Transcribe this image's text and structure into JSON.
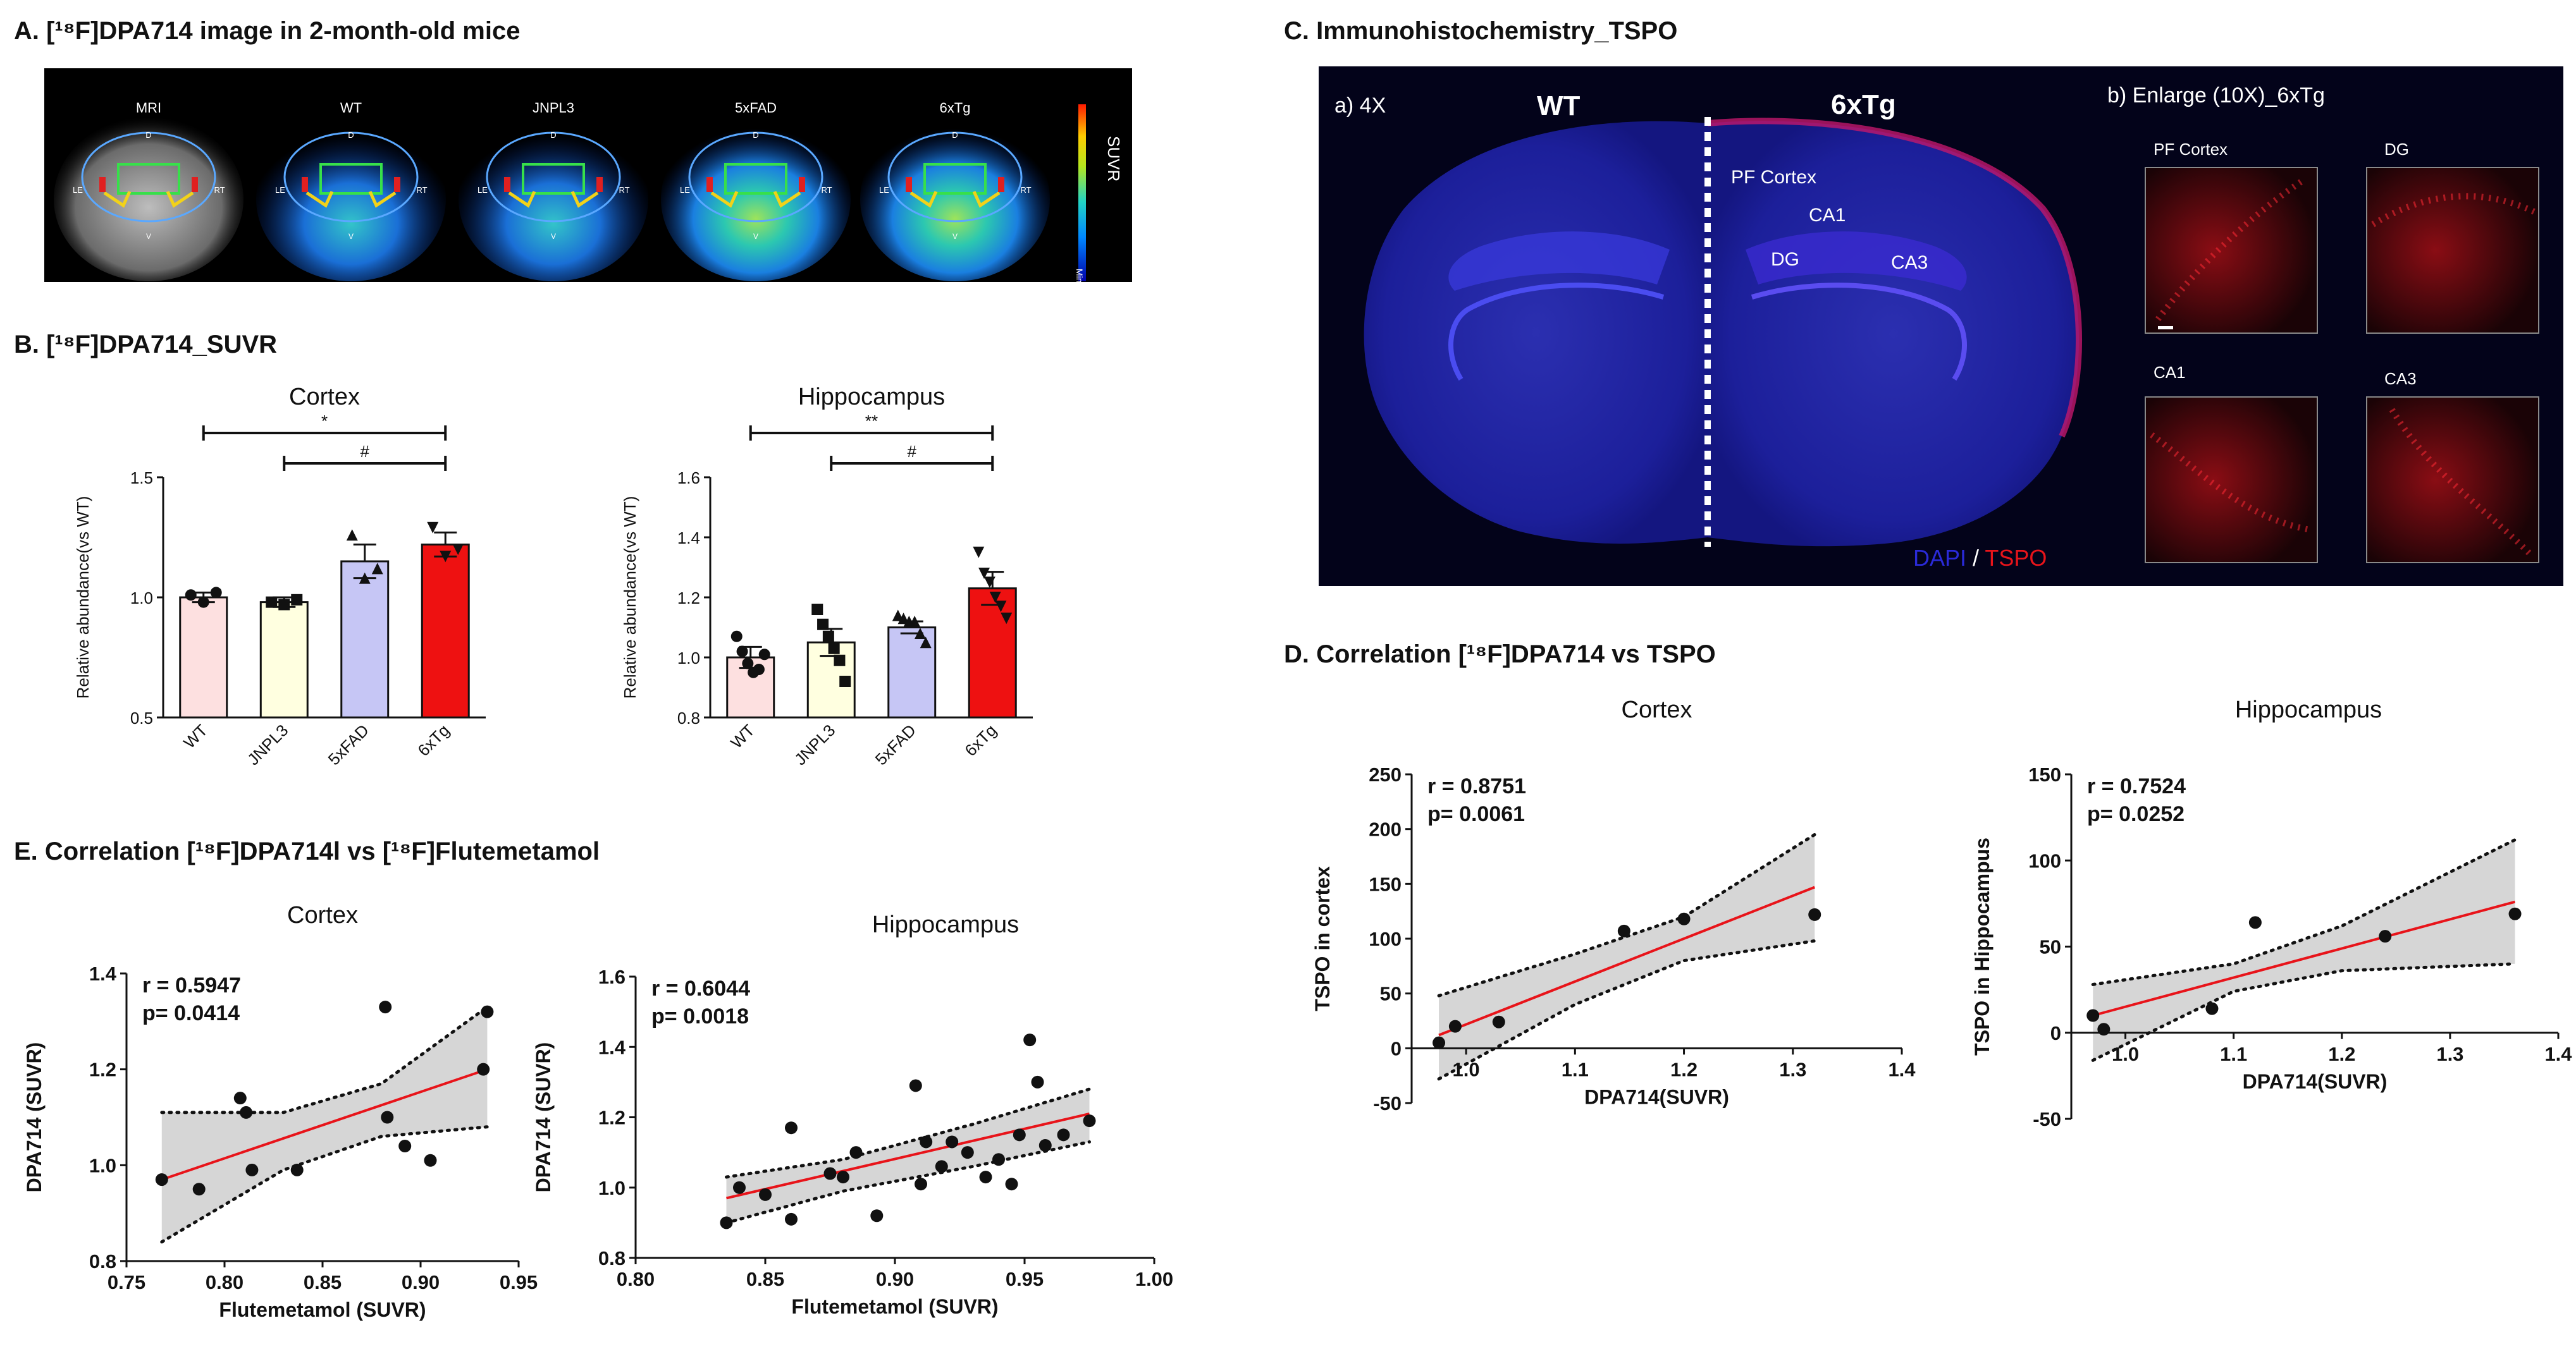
{
  "panelA": {
    "title": "A. [¹⁸F]DPA714 image in 2-month-old mice",
    "labels": [
      "MRI",
      "WT",
      "JNPL3",
      "5xFAD",
      "6xTg"
    ],
    "colorbar_label": "SUVR",
    "colorbar_min": "Min",
    "hemi_left": "LE",
    "hemi_right": "RT",
    "mark_top": "D",
    "mark_bottom": "V"
  },
  "panelB": {
    "title": "B. [¹⁸F]DPA714_SUVR"
  },
  "panelC": {
    "title": "C. Immunohistochemistry_TSPO",
    "sub_a": "a) 4X",
    "wt": "WT",
    "tg": "6xTg",
    "regions": [
      "PF Cortex",
      "CA1",
      "DG",
      "CA3"
    ],
    "stain_dapi": "DAPI",
    "stain_sep": " / ",
    "stain_tspo": "TSPO",
    "sub_b": "b) Enlarge (10X)_6xTg",
    "tiles": [
      "PF Cortex",
      "DG",
      "CA1",
      "CA3"
    ]
  },
  "panelD": {
    "title": "D. Correlation [¹⁸F]DPA714 vs TSPO"
  },
  "panelE": {
    "title": "E. Correlation [¹⁸F]DPA714l vs [¹⁸F]Flutemetamol"
  },
  "colors": {
    "wt": "#fde0e0",
    "jnpl3": "#ffffe0",
    "fxad": "#c6c6f5",
    "tg": "#ee1111",
    "fit": "#e8141a",
    "band": "#d6d6d6",
    "ihc_bg": "#03031a"
  },
  "chart_data": [
    {
      "id": "B-cortex",
      "type": "bar",
      "title": "Cortex",
      "ylabel": "Relative abundance(vs WT)",
      "ylim": [
        0.5,
        1.5
      ],
      "yticks": [
        "0.5",
        "1.0",
        "1.5"
      ],
      "categories": [
        "WT",
        "JNPL3",
        "5xFAD",
        "6xTg"
      ],
      "values": [
        1.0,
        0.98,
        1.15,
        1.22
      ],
      "errors": [
        0.02,
        0.02,
        0.07,
        0.05
      ],
      "points": [
        [
          1.01,
          0.98,
          1.02
        ],
        [
          0.98,
          0.97,
          0.99
        ],
        [
          1.26,
          1.08,
          1.12
        ],
        [
          1.29,
          1.17,
          1.2
        ]
      ],
      "markers": [
        "circle",
        "square",
        "triangle",
        "triangle-down"
      ],
      "significance": [
        {
          "from": 0,
          "to": 3,
          "label": "*"
        },
        {
          "from": 1,
          "to": 3,
          "label": "#"
        }
      ]
    },
    {
      "id": "B-hippocampus",
      "type": "bar",
      "title": "Hippocampus",
      "ylabel": "Relative abundance(vs WT)",
      "ylim": [
        0.8,
        1.6
      ],
      "yticks": [
        "0.8",
        "1.0",
        "1.2",
        "1.4",
        "1.6"
      ],
      "categories": [
        "WT",
        "JNPL3",
        "5xFAD",
        "6xTg"
      ],
      "values": [
        1.0,
        1.05,
        1.1,
        1.23
      ],
      "errors": [
        0.035,
        0.045,
        0.02,
        0.055
      ],
      "points": [
        [
          1.07,
          1.02,
          0.98,
          0.95,
          0.96,
          1.01
        ],
        [
          1.16,
          1.11,
          1.07,
          1.03,
          0.99,
          0.92
        ],
        [
          1.14,
          1.13,
          1.12,
          1.12,
          1.08,
          1.05
        ],
        [
          1.35,
          1.28,
          1.25,
          1.2,
          1.17,
          1.13
        ]
      ],
      "markers": [
        "circle",
        "square",
        "triangle",
        "triangle-down"
      ],
      "significance": [
        {
          "from": 0,
          "to": 3,
          "label": "**"
        },
        {
          "from": 1,
          "to": 3,
          "label": "#"
        }
      ]
    },
    {
      "id": "D-cortex",
      "type": "scatter",
      "title": "Cortex",
      "xlabel": "DPA714(SUVR)",
      "ylabel": "TSPO in cortex",
      "xlim": [
        0.95,
        1.4
      ],
      "ylim": [
        -50,
        250
      ],
      "xticks": [
        "1.0",
        "1.1",
        "1.2",
        "1.3",
        "1.4"
      ],
      "yticks": [
        "-50",
        "0",
        "50",
        "100",
        "150",
        "200",
        "250"
      ],
      "r": "r = 0.8751",
      "p": "p= 0.0061",
      "x": [
        0.975,
        0.99,
        1.03,
        1.145,
        1.2,
        1.32
      ],
      "y": [
        5,
        20,
        24,
        107,
        118,
        122
      ],
      "fit": [
        [
          0.975,
          12
        ],
        [
          1.32,
          147
        ]
      ],
      "band_upper": [
        [
          0.975,
          48
        ],
        [
          1.1,
          86
        ],
        [
          1.2,
          120
        ],
        [
          1.32,
          195
        ]
      ],
      "band_lower": [
        [
          0.975,
          -28
        ],
        [
          1.1,
          40
        ],
        [
          1.2,
          80
        ],
        [
          1.32,
          98
        ]
      ]
    },
    {
      "id": "D-hippocampus",
      "type": "scatter",
      "title": "Hippocampus",
      "xlabel": "DPA714(SUVR)",
      "ylabel": "TSPO in Hippocampus",
      "xlim": [
        0.95,
        1.4
      ],
      "ylim": [
        -50,
        150
      ],
      "xticks": [
        "1.0",
        "1.1",
        "1.2",
        "1.3",
        "1.4"
      ],
      "yticks": [
        "-50",
        "0",
        "50",
        "100",
        "150"
      ],
      "r": "r = 0.7524",
      "p": "p= 0.0252",
      "x": [
        0.97,
        0.98,
        1.08,
        1.12,
        1.24,
        1.36
      ],
      "y": [
        10,
        2,
        14,
        64,
        56,
        69
      ],
      "fit": [
        [
          0.97,
          10
        ],
        [
          1.36,
          76
        ]
      ],
      "band_upper": [
        [
          0.97,
          28
        ],
        [
          1.1,
          40
        ],
        [
          1.2,
          62
        ],
        [
          1.36,
          112
        ]
      ],
      "band_lower": [
        [
          0.97,
          -16
        ],
        [
          1.1,
          24
        ],
        [
          1.2,
          36
        ],
        [
          1.36,
          40
        ]
      ]
    },
    {
      "id": "E-cortex",
      "type": "scatter",
      "title": "Cortex",
      "xlabel": "Flutemetamol (SUVR)",
      "ylabel": "DPA714 (SUVR)",
      "xlim": [
        0.75,
        0.95
      ],
      "ylim": [
        0.8,
        1.4
      ],
      "xticks": [
        "0.75",
        "0.80",
        "0.85",
        "0.90",
        "0.95"
      ],
      "yticks": [
        "0.8",
        "1.0",
        "1.2",
        "1.4"
      ],
      "r": "r = 0.5947",
      "p": "p= 0.0414",
      "x": [
        0.768,
        0.787,
        0.808,
        0.811,
        0.814,
        0.837,
        0.882,
        0.883,
        0.892,
        0.905,
        0.932,
        0.934
      ],
      "y": [
        0.97,
        0.95,
        1.14,
        1.11,
        0.99,
        0.99,
        1.33,
        1.1,
        1.04,
        1.01,
        1.2,
        1.32
      ],
      "fit": [
        [
          0.768,
          0.97
        ],
        [
          0.934,
          1.2
        ]
      ],
      "band_upper": [
        [
          0.768,
          1.11
        ],
        [
          0.83,
          1.11
        ],
        [
          0.88,
          1.17
        ],
        [
          0.934,
          1.33
        ]
      ],
      "band_lower": [
        [
          0.768,
          0.84
        ],
        [
          0.83,
          0.99
        ],
        [
          0.88,
          1.06
        ],
        [
          0.934,
          1.08
        ]
      ]
    },
    {
      "id": "E-hippocampus",
      "type": "scatter",
      "title": "Hippocampus",
      "xlabel": "Flutemetamol (SUVR)",
      "ylabel": "DPA714 (SUVR)",
      "xlim": [
        0.8,
        1.0
      ],
      "ylim": [
        0.8,
        1.6
      ],
      "xticks": [
        "0.80",
        "0.85",
        "0.90",
        "0.95",
        "1.00"
      ],
      "yticks": [
        "0.8",
        "1.0",
        "1.2",
        "1.4",
        "1.6"
      ],
      "r": "r = 0.6044",
      "p": "p= 0.0018",
      "x": [
        0.835,
        0.84,
        0.85,
        0.86,
        0.86,
        0.875,
        0.88,
        0.885,
        0.893,
        0.908,
        0.91,
        0.912,
        0.918,
        0.922,
        0.928,
        0.935,
        0.94,
        0.945,
        0.948,
        0.952,
        0.955,
        0.958,
        0.965,
        0.975
      ],
      "y": [
        0.9,
        1.0,
        0.98,
        0.91,
        1.17,
        1.04,
        1.03,
        1.1,
        0.92,
        1.29,
        1.01,
        1.13,
        1.06,
        1.13,
        1.1,
        1.03,
        1.08,
        1.01,
        1.15,
        1.42,
        1.3,
        1.12,
        1.15,
        1.19
      ],
      "fit": [
        [
          0.835,
          0.97
        ],
        [
          0.975,
          1.21
        ]
      ],
      "band_upper": [
        [
          0.835,
          1.03
        ],
        [
          0.88,
          1.08
        ],
        [
          0.93,
          1.18
        ],
        [
          0.975,
          1.28
        ]
      ],
      "band_lower": [
        [
          0.835,
          0.9
        ],
        [
          0.88,
          0.99
        ],
        [
          0.93,
          1.06
        ],
        [
          0.975,
          1.13
        ]
      ]
    }
  ]
}
